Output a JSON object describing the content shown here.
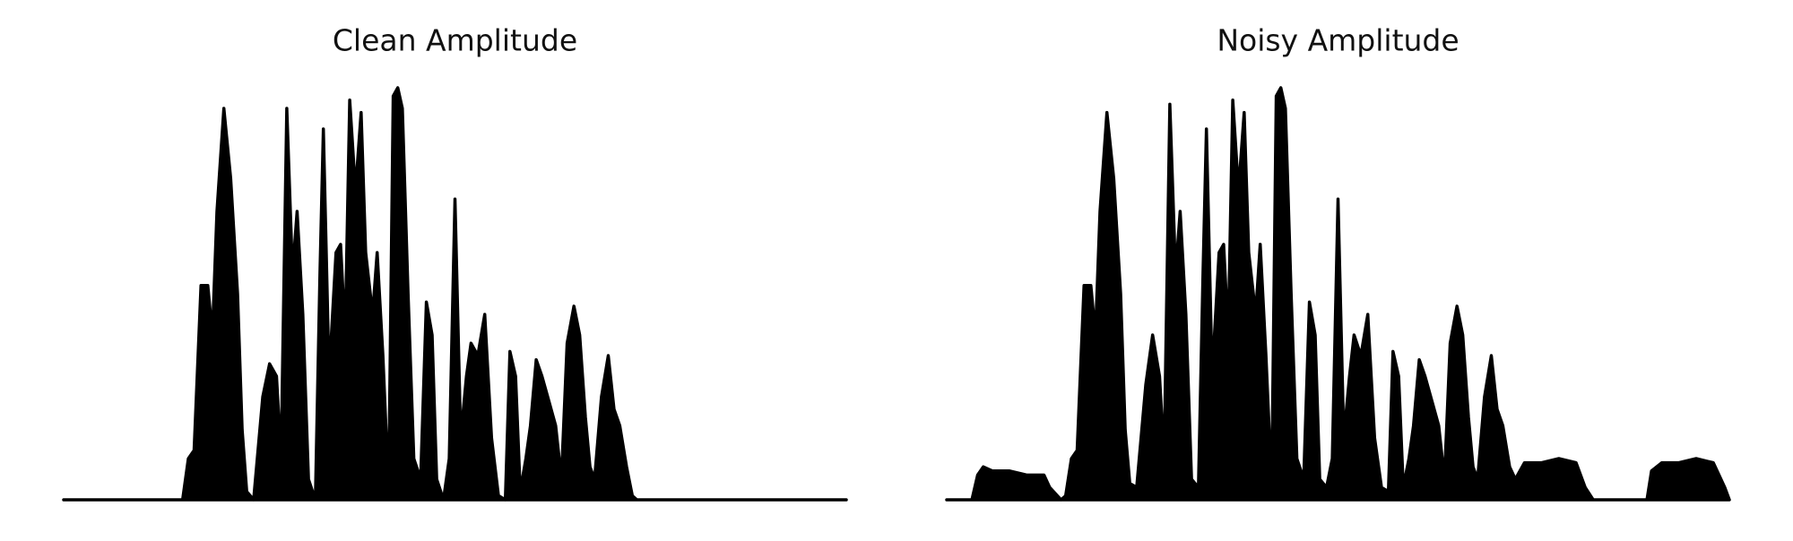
{
  "chart_data": [
    {
      "type": "area",
      "title": "Clean Amplitude",
      "color": "#000000",
      "xlim": [
        0,
        684
      ],
      "ylim": [
        0,
        1
      ],
      "x": [
        0,
        104,
        109,
        114,
        120,
        126,
        130,
        134,
        140,
        146,
        152,
        156,
        160,
        166,
        174,
        180,
        186,
        190,
        195,
        200,
        204,
        209,
        214,
        220,
        224,
        227,
        232,
        238,
        242,
        246,
        250,
        255,
        260,
        264,
        270,
        274,
        279,
        284,
        288,
        292,
        296,
        301,
        306,
        312,
        317,
        322,
        326,
        332,
        337,
        342,
        347,
        352,
        356,
        362,
        368,
        374,
        380,
        386,
        390,
        395,
        399,
        404,
        408,
        413,
        418,
        424,
        430,
        435,
        440,
        446,
        451,
        456,
        460,
        464,
        470,
        476,
        481,
        486,
        492,
        497,
        501,
        684
      ],
      "values": [
        0,
        0,
        0.1,
        0.12,
        0.52,
        0.52,
        0.4,
        0.7,
        0.95,
        0.78,
        0.5,
        0.17,
        0.02,
        0,
        0.25,
        0.33,
        0.3,
        0.1,
        0.95,
        0.55,
        0.7,
        0.45,
        0.05,
        0,
        0.55,
        0.9,
        0.3,
        0.6,
        0.62,
        0.4,
        0.97,
        0.75,
        0.94,
        0.6,
        0.45,
        0.6,
        0.35,
        0.02,
        0.98,
        1,
        0.95,
        0.5,
        0.1,
        0.05,
        0.48,
        0.4,
        0.05,
        0,
        0.1,
        0.73,
        0.15,
        0.3,
        0.38,
        0.35,
        0.45,
        0.15,
        0.01,
        0,
        0.36,
        0.3,
        0.02,
        0.1,
        0.18,
        0.34,
        0.3,
        0.24,
        0.18,
        0.05,
        0.38,
        0.47,
        0.4,
        0.2,
        0.08,
        0.05,
        0.25,
        0.35,
        0.22,
        0.18,
        0.08,
        0.01,
        0,
        0
      ]
    },
    {
      "type": "area",
      "title": "Noisy Amplitude",
      "color": "#000000",
      "xlim": [
        0,
        684
      ],
      "ylim": [
        0,
        1
      ],
      "x": [
        0,
        22,
        27,
        32,
        40,
        55,
        70,
        85,
        90,
        100,
        104,
        109,
        114,
        120,
        126,
        130,
        134,
        140,
        146,
        152,
        156,
        160,
        166,
        174,
        180,
        186,
        190,
        195,
        200,
        204,
        209,
        214,
        220,
        224,
        227,
        232,
        238,
        242,
        246,
        250,
        255,
        260,
        264,
        270,
        274,
        279,
        284,
        288,
        292,
        296,
        301,
        306,
        312,
        317,
        322,
        326,
        332,
        337,
        342,
        347,
        352,
        356,
        362,
        368,
        374,
        380,
        386,
        390,
        395,
        399,
        404,
        408,
        413,
        418,
        424,
        430,
        435,
        440,
        446,
        451,
        456,
        460,
        464,
        470,
        476,
        481,
        486,
        492,
        497,
        505,
        520,
        535,
        550,
        558,
        565,
        612,
        616,
        625,
        640,
        655,
        670,
        680,
        684
      ],
      "values": [
        0,
        0,
        0.06,
        0.08,
        0.07,
        0.07,
        0.06,
        0.06,
        0.03,
        0,
        0.01,
        0.1,
        0.12,
        0.52,
        0.52,
        0.4,
        0.7,
        0.94,
        0.78,
        0.5,
        0.17,
        0.04,
        0.03,
        0.28,
        0.4,
        0.3,
        0.1,
        0.96,
        0.55,
        0.7,
        0.45,
        0.05,
        0.03,
        0.55,
        0.9,
        0.3,
        0.6,
        0.62,
        0.4,
        0.97,
        0.75,
        0.94,
        0.6,
        0.45,
        0.62,
        0.35,
        0.03,
        0.98,
        1,
        0.95,
        0.5,
        0.1,
        0.05,
        0.48,
        0.4,
        0.05,
        0.03,
        0.1,
        0.73,
        0.15,
        0.3,
        0.4,
        0.35,
        0.45,
        0.15,
        0.03,
        0.02,
        0.36,
        0.3,
        0.03,
        0.1,
        0.18,
        0.34,
        0.3,
        0.24,
        0.18,
        0.05,
        0.38,
        0.47,
        0.4,
        0.2,
        0.08,
        0.05,
        0.25,
        0.35,
        0.22,
        0.18,
        0.08,
        0.05,
        0.09,
        0.09,
        0.1,
        0.09,
        0.03,
        0,
        0,
        0.07,
        0.09,
        0.09,
        0.1,
        0.09,
        0.03,
        0
      ]
    }
  ]
}
